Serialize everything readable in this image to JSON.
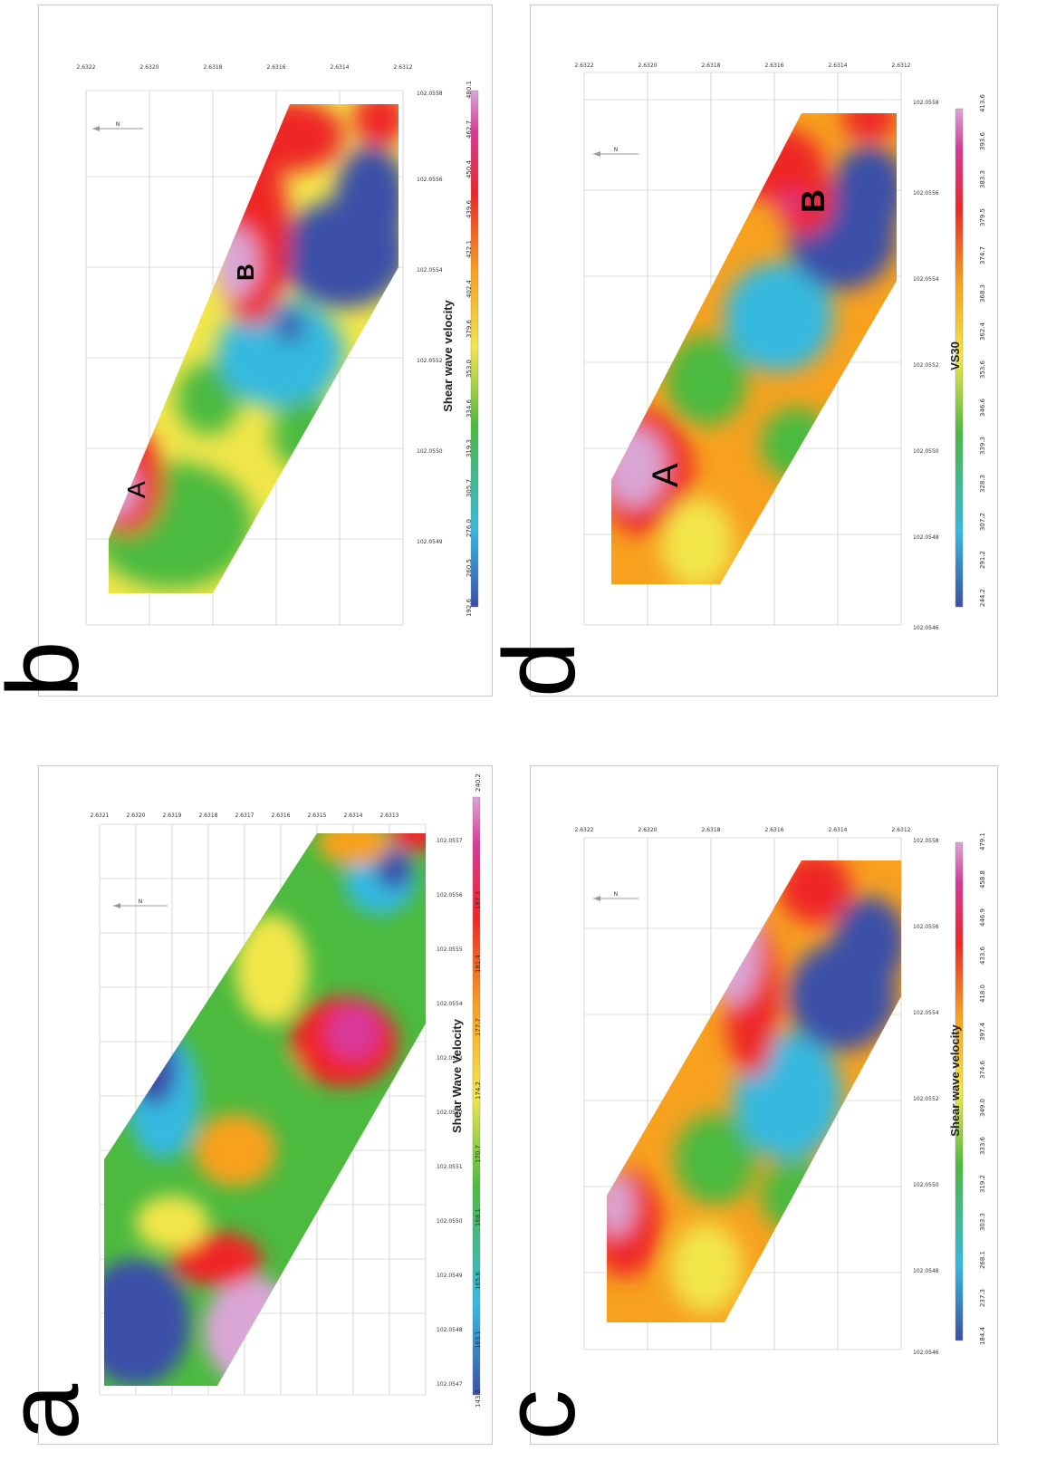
{
  "panels": [
    {
      "id": "a",
      "letter": "a",
      "scale_title": "Shear Wave Velocity",
      "scale_values": [
        "143.3",
        "163.1",
        "165.6",
        "168.1",
        "170.7",
        "174.2",
        "177.7",
        "181.4",
        "187.3",
        "240.2"
      ],
      "lat_ticks": [
        "2.6321",
        "2.6320",
        "2.6319",
        "2.6318",
        "2.6317",
        "2.6316",
        "2.6315",
        "2.6314",
        "2.6313"
      ],
      "lon_ticks": [
        "102.0547",
        "102.0548",
        "102.0549",
        "102.0550",
        "102.0551",
        "102.0552",
        "102.0553",
        "102.0554",
        "102.0555",
        "102.0556",
        "102.0557"
      ],
      "zone_labels": []
    },
    {
      "id": "b",
      "letter": "b",
      "scale_title": "Shear wave velocity",
      "scale_values": [
        "192.6",
        "260.5",
        "276.0",
        "305.7",
        "319.3",
        "334.6",
        "353.0",
        "379.6",
        "402.4",
        "422.1",
        "439.6",
        "450.4",
        "462.7",
        "480.1"
      ],
      "lat_ticks": [
        "2.6322",
        "2.6320",
        "2.6318",
        "2.6316",
        "2.6314",
        "2.6312"
      ],
      "lon_ticks": [
        "102.0549",
        "102.0550",
        "102.0552",
        "102.0554",
        "102.0556",
        "102.0558"
      ],
      "zone_labels": [
        "A",
        "B"
      ]
    },
    {
      "id": "c",
      "letter": "c",
      "scale_title": "Shear wave velocity",
      "scale_values": [
        "184.4",
        "237.3",
        "268.1",
        "303.3",
        "319.2",
        "333.6",
        "349.0",
        "374.6",
        "397.4",
        "418.0",
        "433.6",
        "446.9",
        "458.8",
        "479.1"
      ],
      "lat_ticks": [
        "2.6322",
        "2.6320",
        "2.6318",
        "2.6316",
        "2.6314",
        "2.6312"
      ],
      "lon_ticks": [
        "102.0546",
        "102.0548",
        "102.0550",
        "102.0552",
        "102.0554",
        "102.0556",
        "102.0558"
      ],
      "zone_labels": []
    },
    {
      "id": "d",
      "letter": "d",
      "scale_title": "VS30",
      "scale_values": [
        "244.2",
        "291.2",
        "307.2",
        "328.3",
        "339.3",
        "346.6",
        "353.6",
        "362.4",
        "368.3",
        "374.7",
        "379.5",
        "383.3",
        "393.6",
        "413.6"
      ],
      "lat_ticks": [
        "2.6322",
        "2.6320",
        "2.6318",
        "2.6316",
        "2.6314",
        "2.6312"
      ],
      "lon_ticks": [
        "102.0546",
        "102.0548",
        "102.0550",
        "102.0552",
        "102.0554",
        "102.0556",
        "102.0558"
      ],
      "zone_labels": [
        "A",
        "B"
      ]
    }
  ],
  "north_arrow_label": "N",
  "colors": {
    "low": "#3a4fa8",
    "cyan": "#35b9e0",
    "green": "#4cba3f",
    "yellow": "#f2e64a",
    "orange": "#f7a11f",
    "red": "#ee2626",
    "magenta": "#d9399a",
    "high": "#d9a6d6"
  }
}
